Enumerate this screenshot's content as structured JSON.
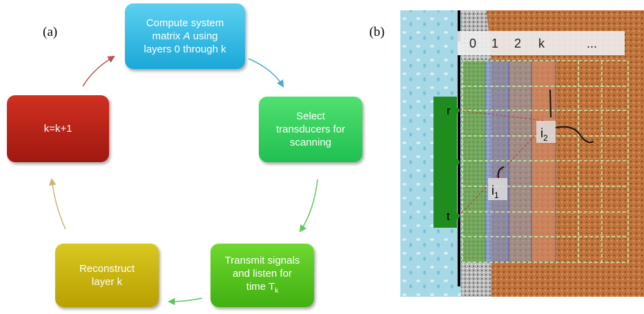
{
  "panel_a": {
    "label": "(a)",
    "steps": [
      {
        "parts": [
          "Compute system matrix ",
          "A",
          " using layers 0 through k"
        ]
      },
      {
        "parts": [
          "Select transducers for scanning"
        ]
      },
      {
        "parts": [
          "Transmit signals and listen for time T",
          "k"
        ]
      },
      {
        "parts": [
          "Reconstruct layer k"
        ]
      },
      {
        "parts": [
          "k=k+1"
        ]
      }
    ]
  },
  "panel_b": {
    "label": "(b)",
    "layers": [
      "0",
      "1",
      "2",
      "k",
      "..."
    ],
    "receiver": "r",
    "transmitter": "t",
    "points": [
      [
        "i",
        "1"
      ],
      [
        "i",
        "2"
      ]
    ]
  }
}
